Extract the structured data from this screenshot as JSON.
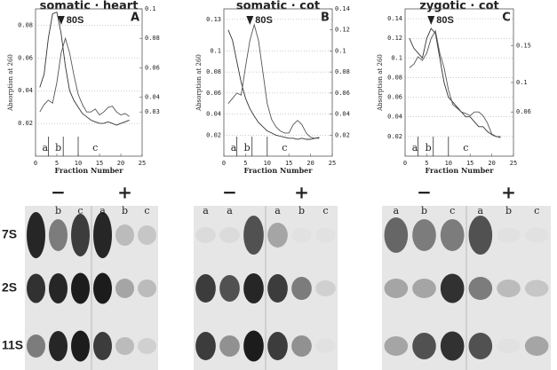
{
  "chart_data": [
    {
      "type": "line",
      "title": "somatic · heart",
      "panel": "A",
      "annotation": "80S",
      "xlabel": "Fraction Number",
      "ylabel": "Absorption at 260",
      "x": [
        1,
        2,
        3,
        4,
        5,
        6,
        7,
        8,
        9,
        10,
        11,
        12,
        13,
        14,
        15,
        16,
        17,
        18,
        19,
        20,
        21,
        22
      ],
      "xlim": [
        0,
        25
      ],
      "xticks": [
        0,
        5,
        10,
        15,
        20,
        25
      ],
      "ylim": [
        0,
        0.09
      ],
      "yticks": [
        0.02,
        0.04,
        0.06,
        0.08
      ],
      "y2lim": [
        0,
        0.1
      ],
      "y2ticks": [
        0.03,
        0.04,
        0.06,
        0.08,
        0.1
      ],
      "fractions": [
        "a",
        "b",
        "c"
      ],
      "grid": true,
      "series": [
        {
          "color": "#333",
          "values": [
            0.042,
            0.05,
            0.072,
            0.087,
            0.088,
            0.075,
            0.055,
            0.04,
            0.034,
            0.03,
            0.026,
            0.024,
            0.022,
            0.021,
            0.02,
            0.02,
            0.021,
            0.02,
            0.019,
            0.02,
            0.021,
            0.022
          ]
        },
        {
          "color": "#555",
          "axis": "y2",
          "values": [
            0.03,
            0.035,
            0.038,
            0.036,
            0.05,
            0.07,
            0.08,
            0.07,
            0.055,
            0.042,
            0.035,
            0.03,
            0.03,
            0.032,
            0.028,
            0.03,
            0.033,
            0.034,
            0.03,
            0.028,
            0.029,
            0.027
          ]
        }
      ]
    },
    {
      "type": "line",
      "title": "somatic · cot",
      "panel": "B",
      "annotation": "80S",
      "xlabel": "Fraction Number",
      "ylabel": "Absorption at 260",
      "x": [
        1,
        2,
        3,
        4,
        5,
        6,
        7,
        8,
        9,
        10,
        11,
        12,
        13,
        14,
        15,
        16,
        17,
        18,
        19,
        20,
        21,
        22
      ],
      "xlim": [
        0,
        25
      ],
      "xticks": [
        0,
        5,
        10,
        15,
        20,
        25
      ],
      "ylim": [
        0,
        0.14
      ],
      "yticks": [
        0.02,
        0.04,
        0.06,
        0.08,
        0.1,
        0.13
      ],
      "y2lim": [
        0,
        0.14
      ],
      "y2ticks": [
        0.02,
        0.04,
        0.06,
        0.08,
        0.1,
        0.12,
        0.14
      ],
      "fractions": [
        "a",
        "b",
        "c"
      ],
      "grid": true,
      "series": [
        {
          "color": "#333",
          "values": [
            0.12,
            0.11,
            0.09,
            0.07,
            0.055,
            0.045,
            0.038,
            0.032,
            0.028,
            0.024,
            0.022,
            0.02,
            0.019,
            0.018,
            0.017,
            0.017,
            0.016,
            0.017,
            0.016,
            0.016,
            0.017,
            0.017
          ]
        },
        {
          "color": "#555",
          "axis": "y2",
          "values": [
            0.05,
            0.055,
            0.06,
            0.058,
            0.085,
            0.11,
            0.125,
            0.11,
            0.08,
            0.05,
            0.035,
            0.028,
            0.024,
            0.022,
            0.022,
            0.03,
            0.034,
            0.03,
            0.022,
            0.018,
            0.017,
            0.018
          ]
        }
      ]
    },
    {
      "type": "line",
      "title": "zygotic · cot",
      "panel": "C",
      "annotation": "80S",
      "xlabel": "Fraction Number",
      "ylabel": "Absorption at 260",
      "x": [
        1,
        2,
        3,
        4,
        5,
        6,
        7,
        8,
        9,
        10,
        11,
        12,
        13,
        14,
        15,
        16,
        17,
        18,
        19,
        20,
        21,
        22
      ],
      "xlim": [
        0,
        25
      ],
      "xticks": [
        0,
        5,
        10,
        15,
        20,
        25
      ],
      "ylim": [
        0,
        0.15
      ],
      "yticks": [
        0.02,
        0.04,
        0.06,
        0.08,
        0.1,
        0.12,
        0.14
      ],
      "y2lim": [
        0,
        0.2
      ],
      "y2ticks": [
        0.06,
        0.1,
        0.15
      ],
      "fractions": [
        "a",
        "b",
        "c"
      ],
      "grid": true,
      "series": [
        {
          "color": "#333",
          "values": [
            0.12,
            0.11,
            0.105,
            0.1,
            0.12,
            0.13,
            0.125,
            0.1,
            0.075,
            0.06,
            0.055,
            0.05,
            0.045,
            0.04,
            0.04,
            0.035,
            0.03,
            0.03,
            0.025,
            0.022,
            0.02,
            0.02
          ]
        },
        {
          "color": "#555",
          "axis": "y2",
          "values": [
            0.12,
            0.125,
            0.135,
            0.13,
            0.14,
            0.16,
            0.17,
            0.14,
            0.12,
            0.09,
            0.07,
            0.065,
            0.06,
            0.058,
            0.055,
            0.06,
            0.06,
            0.055,
            0.045,
            0.03,
            0.027,
            0.025
          ]
        }
      ]
    }
  ],
  "gels": {
    "signs": [
      "−",
      "+"
    ],
    "rows": [
      "7S",
      "2S",
      "11S"
    ],
    "panels": [
      {
        "lanes": [
          null,
          "b",
          "c",
          "a",
          "b",
          "c"
        ]
      },
      {
        "lanes": [
          "a",
          "a",
          null,
          "a",
          "b",
          "c"
        ]
      },
      {
        "lanes": [
          "a",
          "b",
          "c",
          "a",
          "b",
          "c"
        ]
      }
    ]
  }
}
